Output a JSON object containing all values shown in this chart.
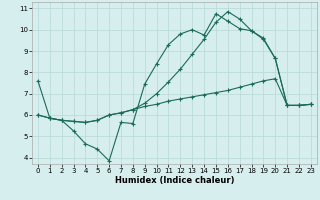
{
  "xlabel": "Humidex (Indice chaleur)",
  "bg_color": "#d6eeee",
  "grid_color": "#b8d8d8",
  "line_color": "#1a6b5a",
  "xlim": [
    -0.5,
    23.5
  ],
  "ylim": [
    3.7,
    11.3
  ],
  "xticks": [
    0,
    1,
    2,
    3,
    4,
    5,
    6,
    7,
    8,
    9,
    10,
    11,
    12,
    13,
    14,
    15,
    16,
    17,
    18,
    19,
    20,
    21,
    22,
    23
  ],
  "yticks": [
    4,
    5,
    6,
    7,
    8,
    9,
    10,
    11
  ],
  "line1_x": [
    0,
    1,
    2,
    3,
    4,
    5,
    6,
    7,
    8,
    9,
    10,
    11,
    12,
    13,
    14,
    15,
    16,
    17,
    18,
    19,
    20,
    21,
    22,
    23
  ],
  "line1_y": [
    7.6,
    5.85,
    5.75,
    5.25,
    4.65,
    4.4,
    3.85,
    5.65,
    5.6,
    7.45,
    8.4,
    9.3,
    9.8,
    10.0,
    9.75,
    10.75,
    10.4,
    10.05,
    9.95,
    9.6,
    8.65,
    6.45,
    6.45,
    6.5
  ],
  "line2_x": [
    0,
    1,
    2,
    3,
    4,
    5,
    6,
    7,
    8,
    9,
    10,
    11,
    12,
    13,
    14,
    15,
    16,
    17,
    18,
    19,
    20,
    21,
    22,
    23
  ],
  "line2_y": [
    6.0,
    5.85,
    5.75,
    5.7,
    5.65,
    5.75,
    6.0,
    6.1,
    6.25,
    6.4,
    6.5,
    6.65,
    6.75,
    6.85,
    6.95,
    7.05,
    7.15,
    7.3,
    7.45,
    7.6,
    7.7,
    6.45,
    6.45,
    6.5
  ],
  "line3_x": [
    0,
    1,
    2,
    3,
    4,
    5,
    6,
    7,
    8,
    9,
    10,
    11,
    12,
    13,
    14,
    15,
    16,
    17,
    18,
    19,
    20,
    21,
    22,
    23
  ],
  "line3_y": [
    6.0,
    5.85,
    5.75,
    5.7,
    5.65,
    5.75,
    6.0,
    6.1,
    6.25,
    6.55,
    7.0,
    7.55,
    8.15,
    8.85,
    9.55,
    10.35,
    10.85,
    10.5,
    9.95,
    9.55,
    8.65,
    6.45,
    6.45,
    6.5
  ],
  "xlabel_fontsize": 6.0,
  "tick_fontsize": 5.0,
  "marker_size": 3.0,
  "lw": 0.8
}
